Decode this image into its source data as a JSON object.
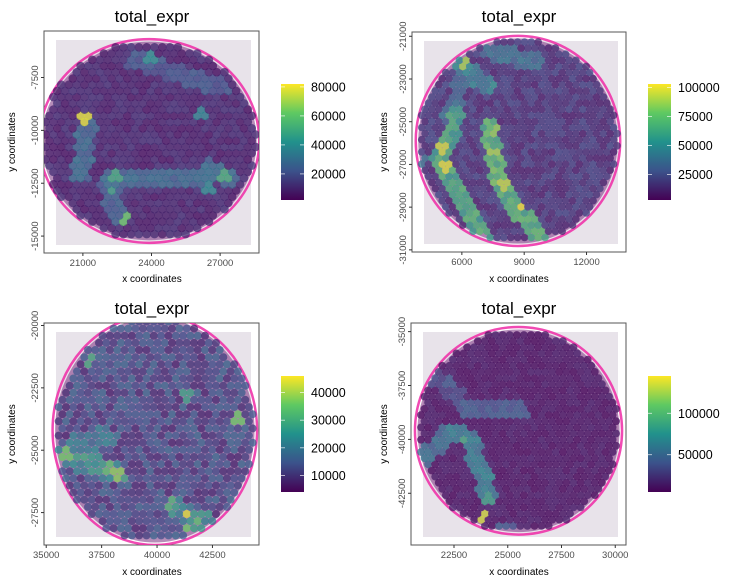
{
  "figure": {
    "layout": "2x2 grid of spatial transcriptomics plots",
    "colormap": "viridis",
    "colormap_stops": [
      "#440154",
      "#3b528b",
      "#21918c",
      "#5ec962",
      "#fde725"
    ],
    "tissue_background": "#e8e3ea",
    "tissue_stain": "#ee2aa6",
    "frame_color": "#555555"
  },
  "chart_data": [
    {
      "type": "scatter",
      "subtype": "spatial hex-spot map over H&E tissue image",
      "title": "total_expr",
      "xlabel": "x coordinates",
      "ylabel": "y coordinates",
      "x_ticks": [
        21000,
        24000,
        27000
      ],
      "y_ticks": [
        -7500,
        -10000,
        -12500,
        -15000
      ],
      "xlim": [
        19300,
        28700
      ],
      "ylim": [
        -15800,
        -5300
      ],
      "grid": false,
      "legend": "right",
      "color_legend": {
        "label_ticks": [
          20000,
          40000,
          60000,
          80000
        ],
        "range": [
          2000,
          82000
        ]
      },
      "tissue": {
        "cx": 23900,
        "cy": -10500,
        "r": 4700,
        "spot_spacing": 340
      },
      "hotspots": [
        {
          "x": 21150,
          "y": -9400,
          "value": 78000
        },
        {
          "x": 22900,
          "y": -14100,
          "value": 62000
        },
        {
          "x": 22500,
          "y": -12200,
          "value": 50000
        },
        {
          "x": 22200,
          "y": -12800,
          "value": 48000
        },
        {
          "x": 27200,
          "y": -12200,
          "value": 52000
        },
        {
          "x": 26600,
          "y": -12800,
          "value": 40000
        },
        {
          "x": 23900,
          "y": -6600,
          "value": 42000
        },
        {
          "x": 26200,
          "y": -9200,
          "value": 38000
        }
      ],
      "bands": [
        {
          "from": [
            21200,
            -9800
          ],
          "to": [
            20900,
            -12000
          ],
          "value": 30000
        },
        {
          "from": [
            22200,
            -12300
          ],
          "to": [
            26400,
            -12300
          ],
          "value": 30000
        },
        {
          "from": [
            22000,
            -12400
          ],
          "to": [
            22600,
            -14100
          ],
          "value": 26000
        },
        {
          "from": [
            23300,
            -6700
          ],
          "to": [
            27000,
            -8000
          ],
          "value": 24000
        },
        {
          "from": [
            26600,
            -11800
          ],
          "to": [
            27400,
            -12400
          ],
          "value": 30000
        }
      ],
      "base_value": 10000
    },
    {
      "type": "scatter",
      "subtype": "spatial hex-spot map over H&E tissue image",
      "title": "total_expr",
      "xlabel": "x coordinates",
      "ylabel": "y coordinates",
      "x_ticks": [
        6000,
        9000,
        12000
      ],
      "y_ticks": [
        -21000,
        -23000,
        -25000,
        -27000,
        -29000,
        -31000
      ],
      "xlim": [
        3600,
        13900
      ],
      "ylim": [
        -31100,
        -20800
      ],
      "grid": false,
      "legend": "right",
      "color_legend": {
        "label_ticks": [
          25000,
          50000,
          75000,
          100000
        ],
        "range": [
          3000,
          103000
        ]
      },
      "tissue": {
        "cx": 8700,
        "cy": -25900,
        "r": 4800,
        "spot_spacing": 330
      },
      "hotspots": [
        {
          "x": 6100,
          "y": -22300,
          "value": 88000
        },
        {
          "x": 5050,
          "y": -26200,
          "value": 95000
        },
        {
          "x": 5200,
          "y": -27100,
          "value": 97000
        },
        {
          "x": 7600,
          "y": -25500,
          "value": 85000
        },
        {
          "x": 7600,
          "y": -26400,
          "value": 88000
        },
        {
          "x": 8000,
          "y": -28000,
          "value": 92000
        },
        {
          "x": 8900,
          "y": -29000,
          "value": 100000
        },
        {
          "x": 9600,
          "y": -30200,
          "value": 75000
        },
        {
          "x": 4000,
          "y": -26800,
          "value": 40000
        }
      ],
      "bands": [
        {
          "from": [
            5800,
            -24700
          ],
          "to": [
            4900,
            -27000
          ],
          "value": 65000
        },
        {
          "from": [
            5000,
            -27000
          ],
          "to": [
            7200,
            -30600
          ],
          "value": 68000
        },
        {
          "from": [
            7300,
            -25300
          ],
          "to": [
            7900,
            -28000
          ],
          "value": 75000
        },
        {
          "from": [
            7900,
            -28000
          ],
          "to": [
            9800,
            -30600
          ],
          "value": 70000
        },
        {
          "from": [
            6000,
            -22300
          ],
          "to": [
            7200,
            -23300
          ],
          "value": 50000
        },
        {
          "from": [
            7300,
            -21700
          ],
          "to": [
            9500,
            -22200
          ],
          "value": 42000
        },
        {
          "from": [
            6100,
            -23000
          ],
          "to": [
            5400,
            -24600
          ],
          "value": 40000
        }
      ],
      "base_value": 18000
    },
    {
      "type": "scatter",
      "subtype": "spatial hex-spot map over H&E tissue image",
      "title": "total_expr",
      "xlabel": "x coordinates",
      "ylabel": "y coordinates",
      "x_ticks": [
        35000,
        37500,
        40000,
        42500
      ],
      "y_ticks": [
        -20000,
        -22500,
        -25000,
        -27500
      ],
      "xlim": [
        34900,
        44600
      ],
      "ylim": [
        -28800,
        -19900
      ],
      "grid": false,
      "legend": "right",
      "color_legend": {
        "label_ticks": [
          10000,
          20000,
          30000,
          40000
        ],
        "range": [
          4000,
          46000
        ]
      },
      "tissue": {
        "cx": 39900,
        "cy": -24200,
        "r": 4500,
        "spot_spacing": 330
      },
      "hotspots": [
        {
          "x": 41350,
          "y": -27550,
          "value": 44000
        },
        {
          "x": 41400,
          "y": -28200,
          "value": 36000
        },
        {
          "x": 41850,
          "y": -27900,
          "value": 34000
        },
        {
          "x": 40650,
          "y": -27050,
          "value": 32000
        },
        {
          "x": 35850,
          "y": -25150,
          "value": 36000
        },
        {
          "x": 38200,
          "y": -25950,
          "value": 38000
        },
        {
          "x": 37900,
          "y": -25700,
          "value": 34000
        },
        {
          "x": 37000,
          "y": -21400,
          "value": 30000
        },
        {
          "x": 43700,
          "y": -23700,
          "value": 36000
        },
        {
          "x": 41250,
          "y": -22750,
          "value": 28000
        }
      ],
      "bands": [
        {
          "from": [
            35700,
            -25300
          ],
          "to": [
            38200,
            -25900
          ],
          "value": 27000
        },
        {
          "from": [
            36300,
            -24700
          ],
          "to": [
            37800,
            -24500
          ],
          "value": 22000
        },
        {
          "from": [
            40800,
            -27300
          ],
          "to": [
            42200,
            -27900
          ],
          "value": 26000
        }
      ],
      "base_value": 13000
    },
    {
      "type": "scatter",
      "subtype": "spatial hex-spot map over H&E tissue image",
      "title": "total_expr",
      "xlabel": "x coordinates",
      "ylabel": "y coordinates",
      "x_ticks": [
        22500,
        25000,
        27500,
        30000
      ],
      "y_ticks": [
        -35000,
        -37500,
        -40000,
        -42500
      ],
      "xlim": [
        20500,
        30500
      ],
      "ylim": [
        -44900,
        -34600
      ],
      "grid": false,
      "legend": "right",
      "color_legend": {
        "label_ticks": [
          50000,
          100000
        ],
        "range": [
          5000,
          145000
        ]
      },
      "tissue": {
        "cx": 25500,
        "cy": -39600,
        "r": 4700,
        "spot_spacing": 330
      },
      "hotspots": [
        {
          "x": 23900,
          "y": -43500,
          "value": 135000
        },
        {
          "x": 23000,
          "y": -40000,
          "value": 90000
        },
        {
          "x": 24100,
          "y": -42700,
          "value": 85000
        },
        {
          "x": 22500,
          "y": -39700,
          "value": 70000
        },
        {
          "x": 21300,
          "y": -40800,
          "value": 60000
        },
        {
          "x": 22200,
          "y": -37400,
          "value": 45000
        },
        {
          "x": 23100,
          "y": -38600,
          "value": 48000
        }
      ],
      "bands": [
        {
          "from": [
            21100,
            -40900
          ],
          "to": [
            22400,
            -39600
          ],
          "value": 58000
        },
        {
          "from": [
            22600,
            -39600
          ],
          "to": [
            23300,
            -40100
          ],
          "value": 65000
        },
        {
          "from": [
            23300,
            -40200
          ],
          "to": [
            24200,
            -42700
          ],
          "value": 68000
        },
        {
          "from": [
            23000,
            -38600
          ],
          "to": [
            25600,
            -38700
          ],
          "value": 45000
        },
        {
          "from": [
            24700,
            -44300
          ],
          "to": [
            25600,
            -44500
          ],
          "value": 45000
        },
        {
          "from": [
            21500,
            -37000
          ],
          "to": [
            22600,
            -37900
          ],
          "value": 35000
        }
      ],
      "base_value": 12000
    }
  ]
}
